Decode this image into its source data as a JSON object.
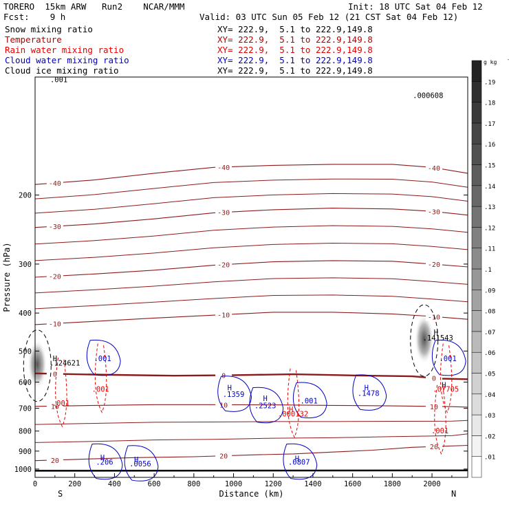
{
  "header": {
    "model": "TORERO  15km ARW   Run2    NCAR/MMM",
    "init": "Init: 18 UTC Sat 04 Feb 12",
    "fcst": "Fcst:    9 h",
    "valid": "Valid: 03 UTC Sun 05 Feb 12 (21 CST Sat 04 Feb 12)"
  },
  "fields": [
    {
      "name": "Snow mixing ratio",
      "xy": "XY= 222.9,  5.1 to 222.9,149.8",
      "color": "#000000"
    },
    {
      "name": "Temperature",
      "xy": "XY= 222.9,  5.1 to 222.9,149.8",
      "color": "#b00000"
    },
    {
      "name": "Rain water mixing ratio",
      "xy": "XY= 222.9,  5.1 to 222.9,149.8",
      "color": "#e00000"
    },
    {
      "name": "Cloud water mixing ratio",
      "xy": "XY= 222.9,  5.1 to 222.9,149.8",
      "color": "#0000c8"
    },
    {
      "name": "Cloud ice mixing ratio",
      "xy": "XY= 222.9,  5.1 to 222.9,149.8",
      "color": "#000000"
    }
  ],
  "colors": {
    "temperature": "#8b1a1a",
    "freezing": "#8b1a1a",
    "rain": "#e00000",
    "cloud_water": "#0000c8",
    "ice": "#000000",
    "ground": "#000000"
  },
  "chart_data": {
    "type": "cross-section",
    "xlabel": "Distance (km)",
    "ylabel": "Pressure (hPa)",
    "xlim": [
      0,
      2180
    ],
    "ylim": [
      100,
      1050
    ],
    "x_ticks": [
      0,
      200,
      400,
      600,
      800,
      1000,
      1200,
      1400,
      1600,
      1800,
      2000
    ],
    "y_ticks": [
      200,
      300,
      400,
      500,
      600,
      700,
      800,
      900,
      1000
    ],
    "y_scale": "log",
    "left_end_label": "S",
    "right_end_label": "N",
    "colorbar": {
      "unit": "g kg",
      "unit_exp": "-1",
      "ticks": [
        ".01",
        ".02",
        ".03",
        ".04",
        ".05",
        ".06",
        ".07",
        ".08",
        ".09",
        ".1",
        ".11",
        ".12",
        ".13",
        ".14",
        ".15",
        ".16",
        ".17",
        ".18",
        ".19"
      ]
    },
    "temperature_contours": [
      {
        "label": "-40",
        "x": [
          0,
          300,
          600,
          900,
          1200,
          1500,
          1800,
          2000,
          2180
        ],
        "p": [
          188,
          183,
          176,
          170,
          168,
          167,
          167,
          170,
          176
        ]
      },
      {
        "label": "-30",
        "x": [
          0,
          300,
          600,
          900,
          1200,
          1500,
          1800,
          2000,
          2180
        ],
        "p": [
          242,
          237,
          230,
          222,
          218,
          216,
          217,
          220,
          225
        ]
      },
      {
        "label": "-20",
        "x": [
          0,
          300,
          600,
          900,
          1200,
          1500,
          1800,
          2000,
          2180
        ],
        "p": [
          324,
          318,
          311,
          302,
          296,
          294,
          295,
          300,
          305
        ]
      },
      {
        "label": "-10",
        "x": [
          0,
          300,
          600,
          900,
          1200,
          1500,
          1800,
          2000,
          2180
        ],
        "p": [
          428,
          420,
          412,
          405,
          398,
          398,
          402,
          408,
          415
        ]
      },
      {
        "label": "0",
        "x": [
          0,
          200,
          400,
          700,
          1000,
          1300,
          1600,
          1900,
          2050,
          2180
        ],
        "p": [
          570,
          573,
          575,
          578,
          576,
          573,
          577,
          580,
          588,
          590
        ]
      },
      {
        "label": "10",
        "x": [
          0,
          300,
          600,
          900,
          1200,
          1500,
          1800,
          2100,
          2180
        ],
        "p": [
          692,
          688,
          685,
          685,
          686,
          688,
          690,
          693,
          695
        ]
      },
      {
        "label": "20",
        "x": [
          0,
          200,
          500,
          800,
          1100,
          1300,
          1500,
          1700,
          1900,
          2180
        ],
        "p": [
          952,
          945,
          935,
          930,
          920,
          915,
          905,
          895,
          880,
          870
        ]
      }
    ],
    "cloud_water_labels": [
      {
        "text": ".1359",
        "x": 1000,
        "p": 655
      },
      {
        "text": ".2523",
        "x": 1160,
        "p": 700
      },
      {
        "text": ".001",
        "x": 1380,
        "p": 680
      },
      {
        "text": ".1478",
        "x": 1680,
        "p": 650
      },
      {
        "text": ".206",
        "x": 350,
        "p": 975
      },
      {
        "text": ".0056",
        "x": 530,
        "p": 985
      },
      {
        "text": ".0807",
        "x": 1330,
        "p": 975
      },
      {
        "text": ".001",
        "x": 340,
        "p": 530
      },
      {
        "text": ".001",
        "x": 2080,
        "p": 530
      }
    ],
    "rain_labels": [
      {
        "text": ".000132",
        "x": 1300,
        "p": 735
      },
      {
        "text": ".001",
        "x": 130,
        "p": 690
      },
      {
        "text": ".001",
        "x": 330,
        "p": 635
      },
      {
        "text": ".001",
        "x": 2040,
        "p": 810
      },
      {
        "text": ".07705",
        "x": 2070,
        "p": 635
      }
    ],
    "ice_labels": [
      {
        "text": ".124621",
        "x": 150,
        "p": 545
      },
      {
        "text": ".141543",
        "x": 2030,
        "p": 470
      },
      {
        "text": ".000608",
        "x": 1980,
        "p": 113
      },
      {
        "text": ".001",
        "x": 120,
        "p": 103
      }
    ],
    "max_markers": [
      {
        "x": 100,
        "p": 530,
        "color": "ice"
      },
      {
        "x": 2020,
        "p": 455,
        "color": "ice"
      },
      {
        "x": 980,
        "p": 630,
        "color": "cloud_water"
      },
      {
        "x": 1160,
        "p": 670,
        "color": "cloud_water"
      },
      {
        "x": 1670,
        "p": 630,
        "color": "cloud_water"
      },
      {
        "x": 340,
        "p": 950,
        "color": "cloud_water"
      },
      {
        "x": 510,
        "p": 960,
        "color": "cloud_water"
      },
      {
        "x": 1320,
        "p": 955,
        "color": "cloud_water"
      },
      {
        "x": 2060,
        "p": 620,
        "color": "cloud_water"
      },
      {
        "x": 1290,
        "p": 715,
        "color": "rain"
      }
    ]
  }
}
